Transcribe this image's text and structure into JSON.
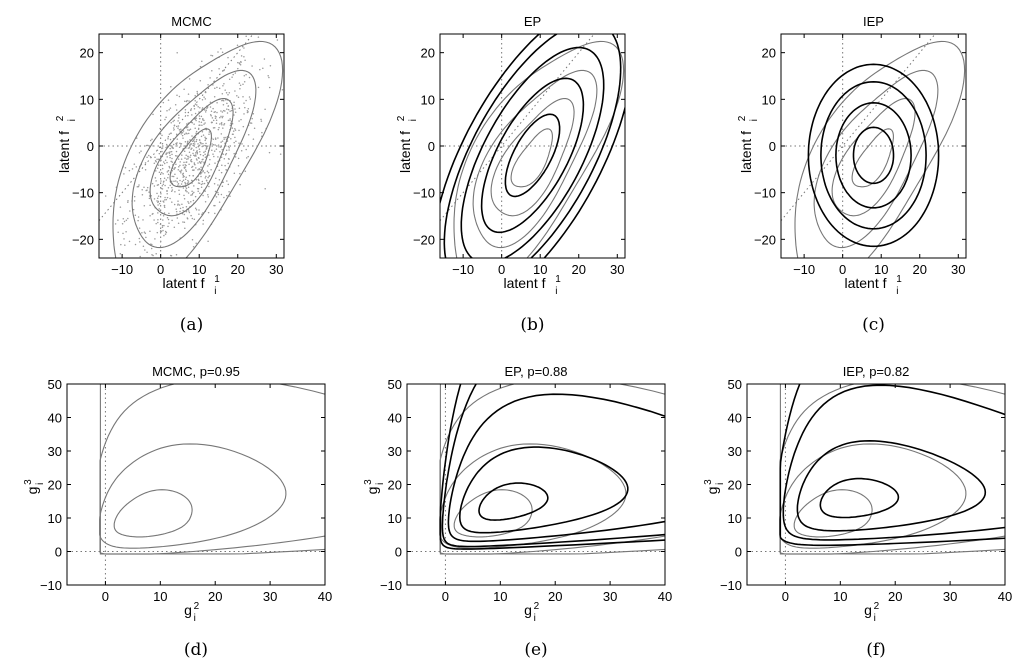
{
  "chart_data": [
    {
      "type": "scatter",
      "panel": "a",
      "title": "MCMC",
      "caption": "(a)",
      "xlabel": "latent f",
      "xlabel_sub": "i",
      "xlabel_sup": "1",
      "ylabel": "latent f",
      "ylabel_sub": "i",
      "ylabel_sup": "2",
      "xlim": [
        -16,
        32
      ],
      "ylim": [
        -24,
        24
      ],
      "xticks": [
        -10,
        0,
        10,
        20,
        30
      ],
      "yticks": [
        -20,
        -10,
        0,
        10,
        20
      ],
      "reference_lines": {
        "x": 0,
        "y": 0,
        "diagonal": true
      },
      "gray_contours": {
        "center": [
          8,
          -3
        ],
        "correlation": 0.62,
        "std_x": 8.5,
        "std_y": 10,
        "levels": [
          0.6,
          1.2,
          1.8,
          2.5
        ]
      },
      "black_contours": null,
      "samples": {
        "count": 1000,
        "center": [
          8,
          -3
        ],
        "correlation": 0.62,
        "std_x": 8.5,
        "std_y": 10
      }
    },
    {
      "type": "line",
      "panel": "b",
      "title": "EP",
      "caption": "(b)",
      "xlabel": "latent f",
      "xlabel_sub": "i",
      "xlabel_sup": "1",
      "ylabel": "latent f",
      "ylabel_sub": "i",
      "ylabel_sup": "2",
      "xlim": [
        -16,
        32
      ],
      "ylim": [
        -24,
        24
      ],
      "xticks": [
        -10,
        0,
        10,
        20,
        30
      ],
      "yticks": [
        -20,
        -10,
        0,
        10,
        20
      ],
      "reference_lines": {
        "x": 0,
        "y": 0,
        "diagonal": true
      },
      "gray_contours": {
        "center": [
          8,
          -3
        ],
        "correlation": 0.62,
        "std_x": 8.5,
        "std_y": 10,
        "levels": [
          0.6,
          1.2,
          1.8,
          2.5
        ]
      },
      "black_contours": {
        "center": [
          8,
          -2
        ],
        "correlation": 0.65,
        "std_x": 8.8,
        "std_y": 11,
        "levels": [
          0.8,
          1.5,
          2.1,
          2.6,
          2.95
        ]
      }
    },
    {
      "type": "line",
      "panel": "c",
      "title": "IEP",
      "caption": "(c)",
      "xlabel": "latent f",
      "xlabel_sub": "i",
      "xlabel_sup": "1",
      "ylabel": "latent f",
      "ylabel_sub": "i",
      "ylabel_sup": "2",
      "xlim": [
        -16,
        32
      ],
      "ylim": [
        -24,
        24
      ],
      "xticks": [
        -10,
        0,
        10,
        20,
        30
      ],
      "yticks": [
        -20,
        -10,
        0,
        10,
        20
      ],
      "reference_lines": {
        "x": 0,
        "y": 0,
        "diagonal": true
      },
      "gray_contours": {
        "center": [
          8,
          -3
        ],
        "correlation": 0.62,
        "std_x": 8.5,
        "std_y": 10,
        "levels": [
          0.6,
          1.2,
          1.8,
          2.5
        ]
      },
      "black_contours": {
        "center": [
          8,
          -2
        ],
        "correlation": 0.0,
        "std_x": 6.5,
        "std_y": 7.5,
        "levels": [
          0.8,
          1.5,
          2.1,
          2.6
        ]
      }
    },
    {
      "type": "line",
      "panel": "d",
      "title": "MCMC, p=0.95",
      "caption": "(d)",
      "xlabel": "g",
      "xlabel_sub": "i",
      "xlabel_sup": "2",
      "ylabel": "g",
      "ylabel_sub": "i",
      "ylabel_sup": "3",
      "xlim": [
        -7,
        40
      ],
      "ylim": [
        -10,
        50
      ],
      "xticks": [
        0,
        10,
        20,
        30,
        40
      ],
      "yticks": [
        -10,
        0,
        10,
        20,
        30,
        40,
        50
      ],
      "reference_lines": {
        "x": 0,
        "y": 0,
        "diagonal": false
      },
      "gray_contours": {
        "mode": [
          7,
          9.5
        ],
        "log_center": [
          2.45,
          2.6
        ],
        "log_correlation": 0.3,
        "log_std": [
          0.85,
          0.7
        ],
        "levels": [
          0.7,
          1.4,
          2.1,
          2.8
        ]
      },
      "black_contours": null
    },
    {
      "type": "line",
      "panel": "e",
      "title": "EP, p=0.88",
      "caption": "(e)",
      "xlabel": "g",
      "xlabel_sub": "i",
      "xlabel_sup": "2",
      "ylabel": "g",
      "ylabel_sub": "i",
      "ylabel_sup": "3",
      "xlim": [
        -7,
        40
      ],
      "ylim": [
        -10,
        50
      ],
      "xticks": [
        0,
        10,
        20,
        30,
        40
      ],
      "yticks": [
        -10,
        0,
        10,
        20,
        30,
        40,
        50
      ],
      "reference_lines": {
        "x": 0,
        "y": 0,
        "diagonal": false
      },
      "gray_contours": {
        "mode": [
          7,
          9.5
        ],
        "log_center": [
          2.45,
          2.6
        ],
        "log_correlation": 0.3,
        "log_std": [
          0.85,
          0.7
        ],
        "levels": [
          0.7,
          1.4,
          2.1,
          2.8
        ]
      },
      "black_contours": {
        "mode": [
          11,
          14
        ],
        "log_center": [
          2.6,
          2.8
        ],
        "log_correlation": 0.35,
        "log_std": [
          0.75,
          0.55
        ],
        "levels": [
          0.6,
          1.3,
          2.0,
          2.6,
          3.0
        ]
      }
    },
    {
      "type": "line",
      "panel": "f",
      "title": "IEP, p=0.82",
      "caption": "(f)",
      "xlabel": "g",
      "xlabel_sub": "i",
      "xlabel_sup": "2",
      "ylabel": "g",
      "ylabel_sub": "i",
      "ylabel_sup": "3",
      "xlim": [
        -7,
        40
      ],
      "ylim": [
        -10,
        50
      ],
      "xticks": [
        0,
        10,
        20,
        30,
        40
      ],
      "yticks": [
        -10,
        0,
        10,
        20,
        30,
        40,
        50
      ],
      "reference_lines": {
        "x": 0,
        "y": 0,
        "diagonal": false
      },
      "gray_contours": {
        "mode": [
          7,
          9.5
        ],
        "log_center": [
          2.45,
          2.6
        ],
        "log_correlation": 0.3,
        "log_std": [
          0.85,
          0.7
        ],
        "levels": [
          0.7,
          1.4,
          2.1,
          2.8
        ]
      },
      "black_contours": {
        "mode": [
          12,
          15
        ],
        "log_center": [
          2.8,
          2.85
        ],
        "log_correlation": 0.2,
        "log_std": [
          0.7,
          0.55
        ],
        "levels": [
          0.6,
          1.3,
          2.0,
          2.6
        ]
      }
    }
  ],
  "colors": {
    "model_contour": "#000000",
    "mcmc_contour": "#777777",
    "samples": "#9a9a9a",
    "reference_line": "#777777"
  }
}
